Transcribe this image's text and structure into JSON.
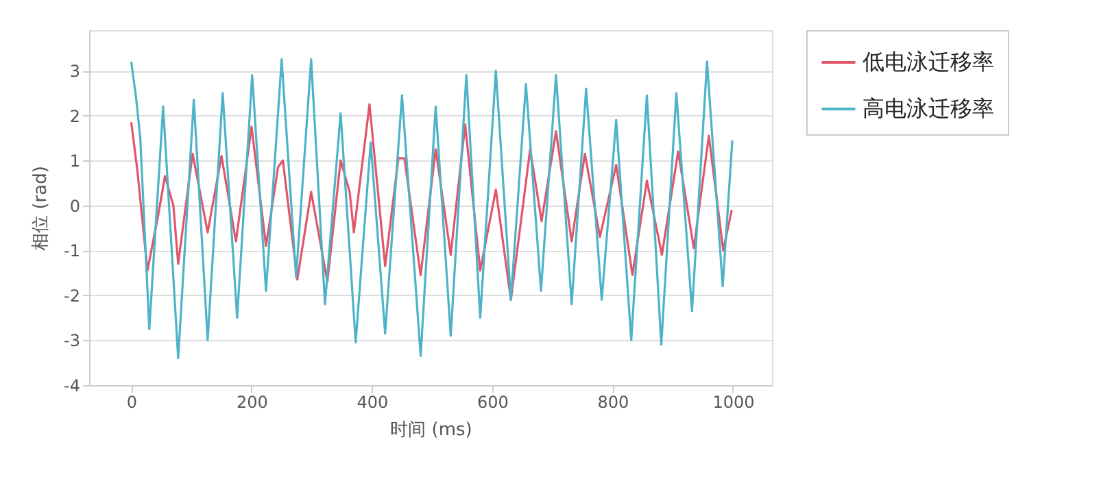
{
  "chart_data": {
    "type": "line",
    "xlabel": "时间 (ms)",
    "ylabel": "相位 (rad)",
    "xlim": [
      -70,
      1065
    ],
    "ylim": [
      -4,
      3.9
    ],
    "xticks": [
      0,
      200,
      400,
      600,
      800,
      1000
    ],
    "yticks": [
      -4,
      -3,
      -2,
      -1,
      0,
      1,
      2,
      3
    ],
    "grid": "y",
    "legend": "top right",
    "series": [
      {
        "name": "低电泳迁移率",
        "color": "#e0566b",
        "x": [
          0,
          10,
          27,
          45,
          56,
          70,
          78,
          102,
          127,
          150,
          174,
          200,
          224,
          244,
          252,
          276,
          299,
          326,
          348,
          363,
          370,
          396,
          422,
          444,
          454,
          481,
          506,
          531,
          555,
          580,
          606,
          631,
          663,
          682,
          706,
          732,
          754,
          779,
          806,
          833,
          857,
          882,
          909,
          935,
          960,
          984,
          998
        ],
        "values": [
          1.85,
          0.8,
          -1.45,
          -0.2,
          0.65,
          0,
          -1.3,
          1.15,
          -0.6,
          1.1,
          -0.8,
          1.75,
          -0.9,
          0.85,
          1.0,
          -1.65,
          0.3,
          -1.7,
          1.0,
          0.3,
          -0.6,
          2.25,
          -1.35,
          1.05,
          1.05,
          -1.55,
          1.25,
          -1.1,
          1.8,
          -1.45,
          0.35,
          -2.1,
          1.25,
          -0.35,
          1.65,
          -0.8,
          1.15,
          -0.7,
          0.9,
          -1.55,
          0.55,
          -1.1,
          1.2,
          -0.95,
          1.55,
          -1.0,
          -0.1
        ]
      },
      {
        "name": "高电泳迁移率",
        "color": "#4db3c8",
        "x": [
          0,
          8,
          15,
          30,
          53,
          78,
          104,
          127,
          152,
          176,
          201,
          224,
          250,
          274,
          299,
          322,
          348,
          373,
          398,
          422,
          450,
          481,
          506,
          531,
          557,
          580,
          606,
          631,
          656,
          681,
          706,
          732,
          756,
          782,
          806,
          831,
          857,
          881,
          906,
          932,
          957,
          983,
          999
        ],
        "values": [
          3.2,
          2.4,
          1.5,
          -2.75,
          2.2,
          -3.4,
          2.35,
          -3.0,
          2.5,
          -2.5,
          2.9,
          -1.9,
          3.25,
          -1.6,
          3.25,
          -2.2,
          2.05,
          -3.05,
          1.4,
          -2.85,
          2.45,
          -3.35,
          2.2,
          -2.9,
          2.9,
          -2.5,
          3.0,
          -2.1,
          2.7,
          -1.9,
          2.9,
          -2.2,
          2.6,
          -2.1,
          1.9,
          -3.0,
          2.45,
          -3.1,
          2.5,
          -2.35,
          3.2,
          -1.8,
          1.45
        ]
      }
    ]
  }
}
